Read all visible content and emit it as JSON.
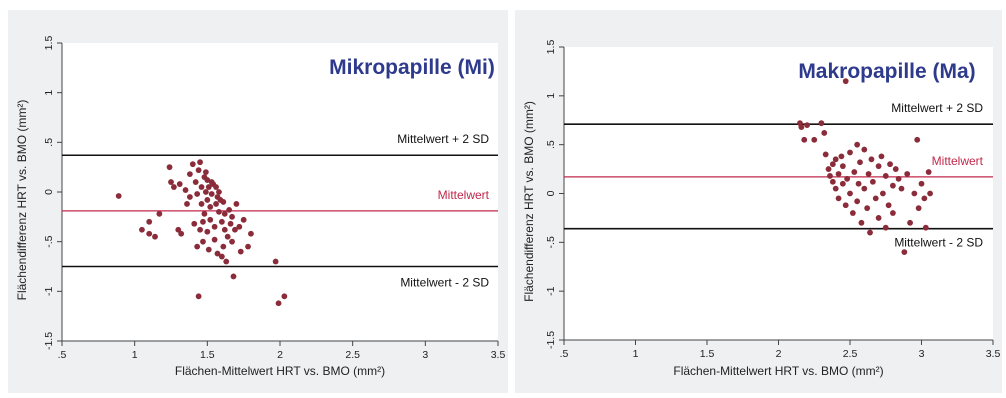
{
  "chart_data": [
    {
      "type": "scatter",
      "title": "Mikropapille (Mi)",
      "xlabel": "Flächen-Mittelwert HRT vs. BMO (mm²)",
      "ylabel": "Flächendifferenz HRT vs. BMO (mm²)",
      "xlim": [
        0.5,
        3.5
      ],
      "ylim": [
        -1.5,
        1.5
      ],
      "x_ticks": [
        ".5",
        "1",
        "1.5",
        "2",
        "2.5",
        "3",
        "3.5"
      ],
      "y_ticks": [
        "-1.5",
        "-1",
        "-.5",
        "0",
        ".5",
        "1",
        "1.5"
      ],
      "colors": {
        "points": "#8b2c3a",
        "mean_line": "#c0284b",
        "sd_lines": "#111111",
        "title": "#2e3a8c"
      },
      "reference_lines": [
        {
          "label": "Mittelwert + 2 SD",
          "y": 0.37
        },
        {
          "label": "Mittelwert",
          "y": -0.19
        },
        {
          "label": "Mittelwert - 2 SD",
          "y": -0.75
        }
      ],
      "points": [
        [
          0.89,
          -0.04
        ],
        [
          1.05,
          -0.38
        ],
        [
          1.1,
          -0.3
        ],
        [
          1.1,
          -0.42
        ],
        [
          1.14,
          -0.45
        ],
        [
          1.17,
          -0.22
        ],
        [
          1.24,
          0.25
        ],
        [
          1.25,
          0.1
        ],
        [
          1.27,
          0.05
        ],
        [
          1.3,
          -0.38
        ],
        [
          1.31,
          0.08
        ],
        [
          1.32,
          -0.42
        ],
        [
          1.35,
          0.02
        ],
        [
          1.36,
          -0.12
        ],
        [
          1.38,
          0.18
        ],
        [
          1.38,
          -0.05
        ],
        [
          1.4,
          0.28
        ],
        [
          1.41,
          -0.32
        ],
        [
          1.42,
          0.1
        ],
        [
          1.43,
          -0.02
        ],
        [
          1.43,
          -0.55
        ],
        [
          1.44,
          -1.05
        ],
        [
          1.44,
          0.22
        ],
        [
          1.45,
          -0.38
        ],
        [
          1.45,
          0.3
        ],
        [
          1.46,
          -0.12
        ],
        [
          1.46,
          0.05
        ],
        [
          1.47,
          -0.3
        ],
        [
          1.47,
          -0.5
        ],
        [
          1.48,
          0.15
        ],
        [
          1.48,
          -0.22
        ],
        [
          1.49,
          0.2
        ],
        [
          1.49,
          0.0
        ],
        [
          1.5,
          -0.08
        ],
        [
          1.5,
          -0.4
        ],
        [
          1.5,
          0.12
        ],
        [
          1.51,
          -0.58
        ],
        [
          1.51,
          0.05
        ],
        [
          1.52,
          -0.15
        ],
        [
          1.52,
          -0.28
        ],
        [
          1.53,
          0.1
        ],
        [
          1.53,
          -0.02
        ],
        [
          1.54,
          0.08
        ],
        [
          1.55,
          -0.35
        ],
        [
          1.55,
          -0.48
        ],
        [
          1.56,
          0.05
        ],
        [
          1.56,
          -0.12
        ],
        [
          1.57,
          -0.05
        ],
        [
          1.57,
          -0.62
        ],
        [
          1.58,
          0.0
        ],
        [
          1.58,
          -0.2
        ],
        [
          1.59,
          -0.08
        ],
        [
          1.6,
          -0.65
        ],
        [
          1.6,
          -0.3
        ],
        [
          1.61,
          -0.1
        ],
        [
          1.61,
          -0.55
        ],
        [
          1.62,
          -0.22
        ],
        [
          1.62,
          -0.38
        ],
        [
          1.63,
          -0.7
        ],
        [
          1.64,
          -0.45
        ],
        [
          1.65,
          -0.18
        ],
        [
          1.66,
          -0.32
        ],
        [
          1.67,
          -0.5
        ],
        [
          1.67,
          -0.25
        ],
        [
          1.68,
          -0.85
        ],
        [
          1.69,
          -0.38
        ],
        [
          1.7,
          -0.12
        ],
        [
          1.72,
          -0.35
        ],
        [
          1.73,
          -0.6
        ],
        [
          1.75,
          -0.28
        ],
        [
          1.78,
          -0.55
        ],
        [
          1.8,
          -0.42
        ],
        [
          1.97,
          -0.7
        ],
        [
          1.99,
          -1.12
        ],
        [
          2.03,
          -1.05
        ]
      ]
    },
    {
      "type": "scatter",
      "title": "Makropapille (Ma)",
      "xlabel": "Flächen-Mittelwert HRT vs. BMO (mm²)",
      "ylabel": "Flächendifferenz HRT vs. BMO (mm²)",
      "xlim": [
        0.5,
        3.5
      ],
      "ylim": [
        -1.5,
        1.5
      ],
      "x_ticks": [
        ".5",
        "1",
        "1.5",
        "2",
        "2.5",
        "3",
        "3.5"
      ],
      "y_ticks": [
        "-1.5",
        "-1",
        "-.5",
        "0",
        ".5",
        "1",
        "1.5"
      ],
      "colors": {
        "points": "#8b2c3a",
        "mean_line": "#c0284b",
        "sd_lines": "#111111",
        "title": "#2e3a8c"
      },
      "reference_lines": [
        {
          "label": "Mittelwert + 2 SD",
          "y": 0.71
        },
        {
          "label": "Mittelwert",
          "y": 0.17
        },
        {
          "label": "Mittelwert - 2 SD",
          "y": -0.36
        }
      ],
      "points": [
        [
          2.15,
          0.72
        ],
        [
          2.16,
          0.68
        ],
        [
          2.18,
          0.55
        ],
        [
          2.2,
          0.7
        ],
        [
          2.25,
          0.55
        ],
        [
          2.3,
          0.72
        ],
        [
          2.32,
          0.62
        ],
        [
          2.33,
          0.4
        ],
        [
          2.35,
          0.25
        ],
        [
          2.36,
          0.18
        ],
        [
          2.38,
          0.3
        ],
        [
          2.38,
          0.12
        ],
        [
          2.4,
          0.35
        ],
        [
          2.4,
          0.05
        ],
        [
          2.42,
          0.2
        ],
        [
          2.42,
          -0.05
        ],
        [
          2.44,
          0.38
        ],
        [
          2.45,
          0.1
        ],
        [
          2.45,
          0.28
        ],
        [
          2.47,
          1.15
        ],
        [
          2.47,
          -0.12
        ],
        [
          2.48,
          0.15
        ],
        [
          2.5,
          0.42
        ],
        [
          2.5,
          0.0
        ],
        [
          2.52,
          -0.2
        ],
        [
          2.53,
          0.22
        ],
        [
          2.55,
          0.5
        ],
        [
          2.55,
          -0.08
        ],
        [
          2.56,
          0.1
        ],
        [
          2.57,
          0.32
        ],
        [
          2.58,
          -0.3
        ],
        [
          2.6,
          0.45
        ],
        [
          2.6,
          0.05
        ],
        [
          2.62,
          -0.15
        ],
        [
          2.63,
          0.2
        ],
        [
          2.64,
          -0.4
        ],
        [
          2.65,
          0.35
        ],
        [
          2.66,
          0.12
        ],
        [
          2.68,
          -0.05
        ],
        [
          2.7,
          0.28
        ],
        [
          2.7,
          -0.25
        ],
        [
          2.72,
          0.38
        ],
        [
          2.73,
          0.0
        ],
        [
          2.75,
          0.18
        ],
        [
          2.75,
          -0.35
        ],
        [
          2.77,
          -0.12
        ],
        [
          2.78,
          0.3
        ],
        [
          2.8,
          0.08
        ],
        [
          2.8,
          -0.2
        ],
        [
          2.82,
          0.25
        ],
        [
          2.84,
          0.15
        ],
        [
          2.86,
          0.05
        ],
        [
          2.88,
          -0.6
        ],
        [
          2.9,
          0.2
        ],
        [
          2.92,
          -0.3
        ],
        [
          2.95,
          0.0
        ],
        [
          2.97,
          0.55
        ],
        [
          2.98,
          -0.15
        ],
        [
          3.0,
          0.1
        ],
        [
          3.02,
          -0.05
        ],
        [
          3.03,
          -0.35
        ],
        [
          3.05,
          0.22
        ],
        [
          3.06,
          0.0
        ]
      ]
    }
  ]
}
